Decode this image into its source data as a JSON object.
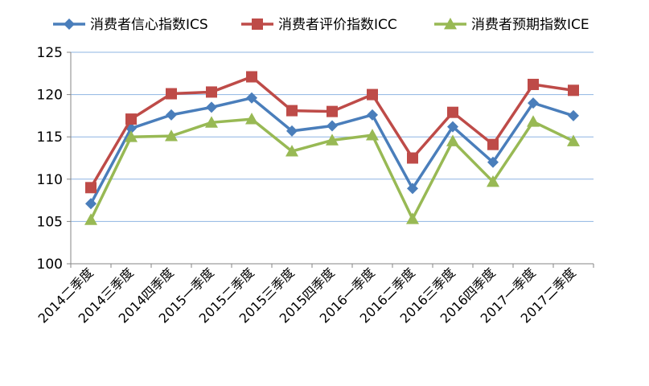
{
  "chart_data": {
    "type": "line",
    "categories": [
      "2014二季度",
      "2014三季度",
      "2014四季度",
      "2015一季度",
      "2015二季度",
      "2015三季度",
      "2015四季度",
      "2016一季度",
      "2016二季度",
      "2016三季度",
      "2016四季度",
      "2017一季度",
      "2017二季度"
    ],
    "series": [
      {
        "name": "消费者信心指数ICS",
        "color": "#4a7ebb",
        "marker": "diamond",
        "values": [
          107.1,
          116.0,
          117.6,
          118.5,
          119.6,
          115.7,
          116.3,
          117.6,
          108.9,
          116.2,
          112.0,
          119.0,
          117.5
        ]
      },
      {
        "name": "消费者评价指数ICC",
        "color": "#be4b48",
        "marker": "square",
        "values": [
          109.0,
          117.1,
          120.1,
          120.3,
          122.1,
          118.1,
          118.0,
          120.0,
          112.5,
          117.9,
          114.1,
          121.2,
          120.5
        ]
      },
      {
        "name": "消费者预期指数ICE",
        "color": "#98b954",
        "marker": "triangle",
        "values": [
          105.2,
          115.0,
          115.1,
          116.7,
          117.1,
          113.3,
          114.6,
          115.2,
          105.3,
          114.5,
          109.7,
          116.8,
          114.5
        ]
      }
    ],
    "ylim": [
      100,
      125
    ],
    "yticks": [
      "100",
      "105",
      "110",
      "115",
      "120",
      "125"
    ],
    "grid": true,
    "legend": "top"
  }
}
